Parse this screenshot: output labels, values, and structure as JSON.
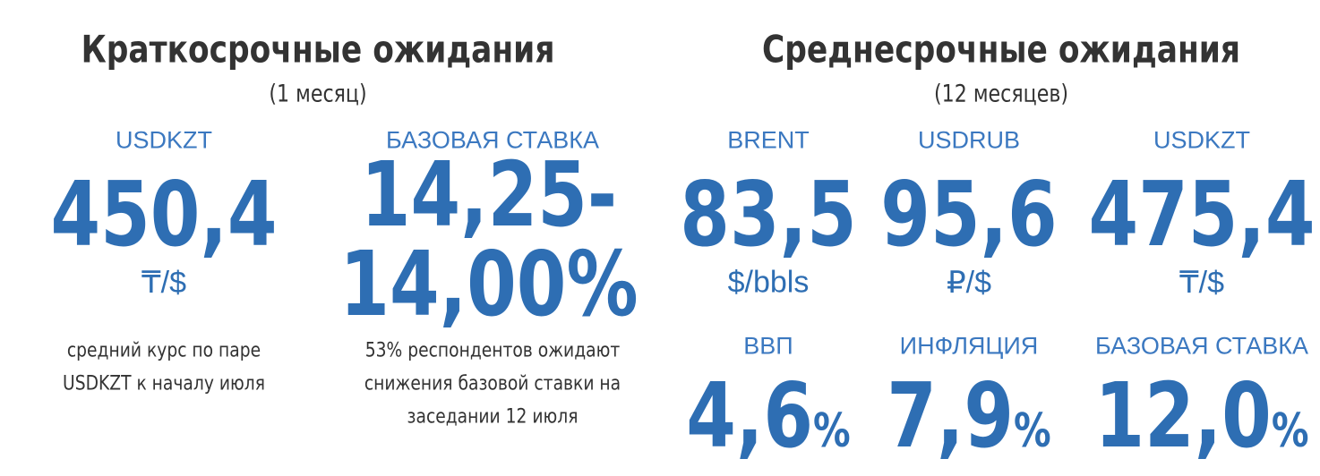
{
  "short_term": {
    "title": "Краткосрочные ожидания",
    "subtitle": "(1 месяц)",
    "items": [
      {
        "label": "USDKZT",
        "value": "450,4",
        "unit": "₸/$",
        "note": [
          "средний курс по паре",
          "USDKZT к началу июля"
        ]
      },
      {
        "label": "БАЗОВАЯ СТАВКА",
        "value": [
          "14,25-",
          "14,00%"
        ],
        "note": [
          "53% респондентов ожидают",
          "снижения базовой ставки на",
          "заседании 12 июля"
        ]
      }
    ]
  },
  "medium_term": {
    "title": "Среднесрочные ожидания",
    "subtitle": "(12 месяцев)",
    "items": [
      {
        "label": "BRENT",
        "value": "83,5",
        "unit": "$/bbls"
      },
      {
        "label": "USDRUB",
        "value": "95,6",
        "unit": "₽/$"
      },
      {
        "label": "USDKZT",
        "value": "475,4",
        "unit": "₸/$"
      },
      {
        "label": "ВВП",
        "value": "4,6",
        "unit": "%"
      },
      {
        "label": "ИНФЛЯЦИЯ",
        "value": "7,9",
        "unit": "%"
      },
      {
        "label": "БАЗОВАЯ СТАВКА",
        "value": "12,0",
        "unit": "%"
      }
    ]
  }
}
